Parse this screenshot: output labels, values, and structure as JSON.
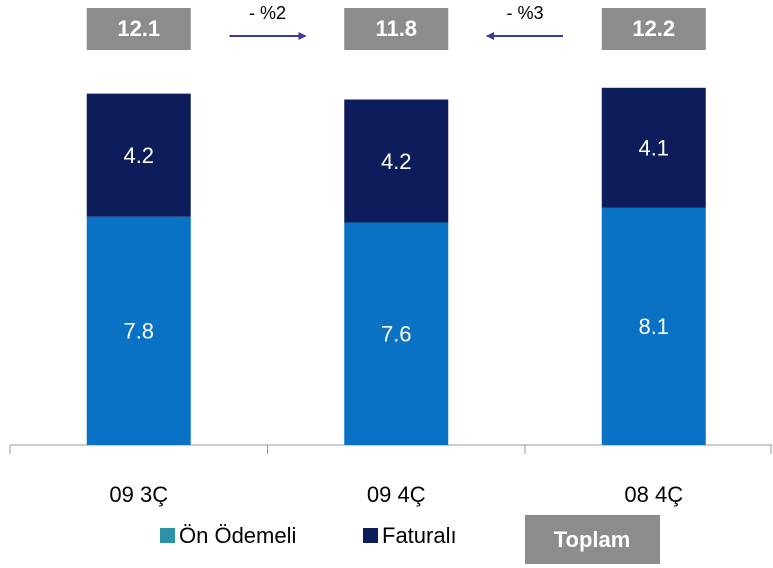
{
  "chart_data": {
    "type": "stacked_bar",
    "categories": [
      "09 3Ç",
      "09 4Ç",
      "08 4Ç"
    ],
    "series": [
      {
        "name": "Ön Ödemeli",
        "color": "#0a72c4",
        "legend_color": "#2e92a6",
        "values": [
          7.8,
          7.6,
          8.1
        ]
      },
      {
        "name": "Faturalı",
        "color": "#0d1d5c",
        "legend_color": "#0d1d5c",
        "values": [
          4.2,
          4.2,
          4.1
        ]
      }
    ],
    "totals": {
      "name": "Toplam",
      "color": "#8c8c8c",
      "values": [
        12.1,
        11.8,
        12.2
      ]
    },
    "changes": [
      {
        "label": "- %2",
        "direction": "right",
        "color": "#3a3a9c"
      },
      {
        "label": "- %3",
        "direction": "left",
        "color": "#3a3a9c"
      }
    ],
    "ylim": [
      0,
      12.5
    ]
  }
}
